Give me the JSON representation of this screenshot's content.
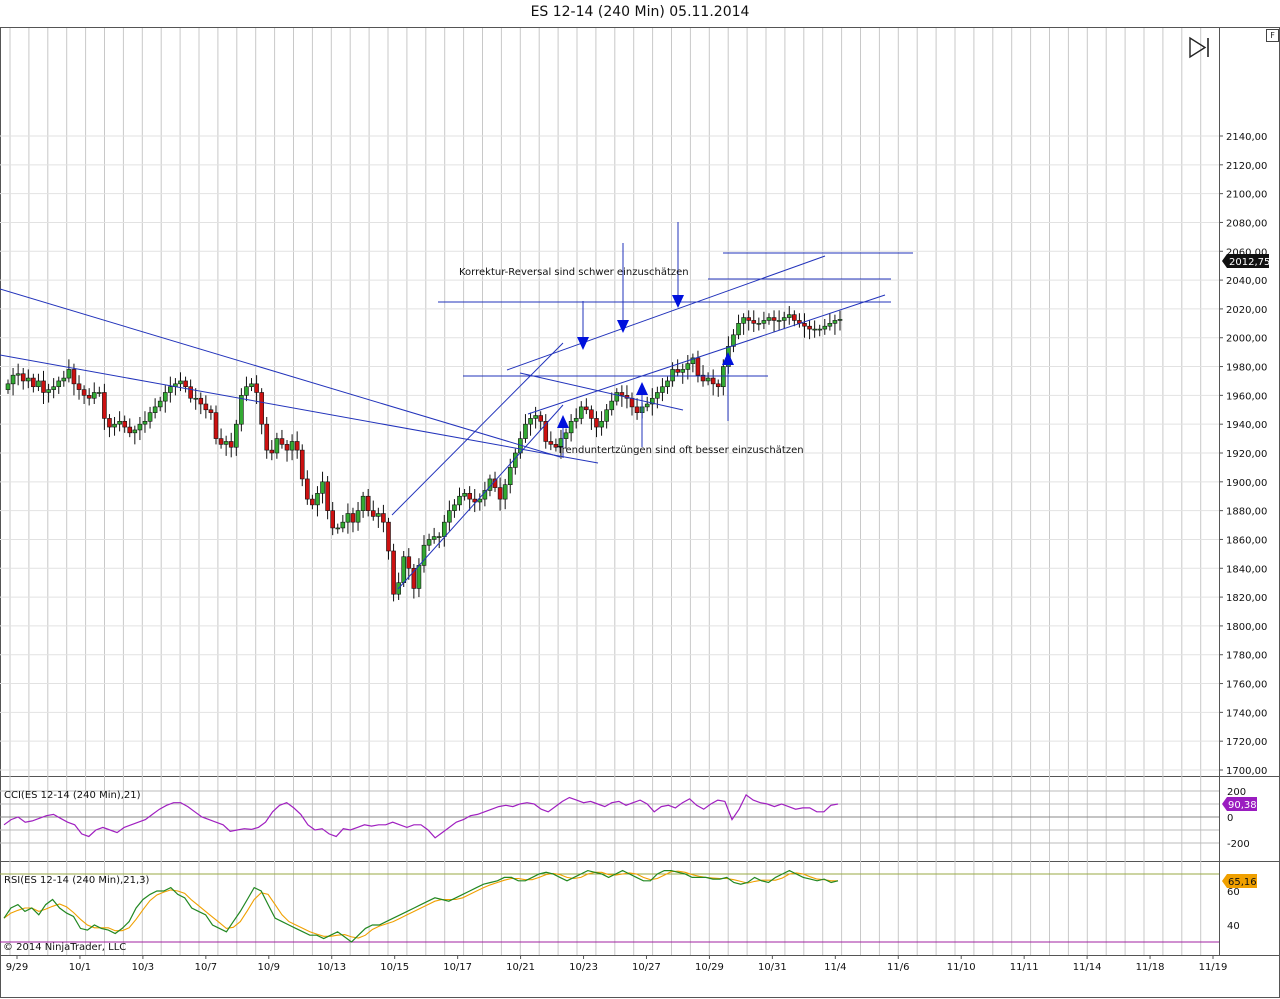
{
  "window_title": "ES 12-14 (240 Min)  05.11.2014",
  "f_button_label": "F",
  "copyright": "© 2014 NinjaTrader, LLC",
  "colors": {
    "up": "#33aa33",
    "down": "#cc1111",
    "trendline": "#2233bb",
    "cci": "#a020c0",
    "rsi": "#228822",
    "rsi_avg": "#f0a000",
    "grid": "#c8c8c8"
  },
  "chart_data": [
    {
      "type": "candlestick",
      "title": "ES 12-14 (240 Min)  05.11.2014",
      "ylim": [
        1695,
        2150
      ],
      "y_ticks": [
        "2140,00",
        "2120,00",
        "2100,00",
        "2080,00",
        "2060,00",
        "2040,00",
        "2020,00",
        "2000,00",
        "1980,00",
        "1960,00",
        "1940,00",
        "1920,00",
        "1900,00",
        "1880,00",
        "1860,00",
        "1840,00",
        "1820,00",
        "1800,00",
        "1780,00",
        "1760,00",
        "1740,00",
        "1720,00",
        "1700,00"
      ],
      "x_ticks": [
        "9/29",
        "10/1",
        "10/3",
        "10/7",
        "10/9",
        "10/13",
        "10/15",
        "10/17",
        "10/21",
        "10/23",
        "10/27",
        "10/29",
        "10/31",
        "11/4",
        "11/6",
        "11/10",
        "11/11",
        "11/14",
        "11/18",
        "11/19"
      ],
      "last_price_label": "2012,75",
      "last_price": 2012.75,
      "close_series": [
        1968,
        1974,
        1975,
        1970,
        1972,
        1966,
        1970,
        1962,
        1964,
        1966,
        1970,
        1972,
        1978,
        1968,
        1964,
        1960,
        1958,
        1962,
        1962,
        1944,
        1938,
        1940,
        1942,
        1938,
        1934,
        1936,
        1940,
        1942,
        1948,
        1952,
        1956,
        1962,
        1966,
        1968,
        1970,
        1966,
        1958,
        1958,
        1954,
        1950,
        1948,
        1930,
        1926,
        1928,
        1924,
        1940,
        1960,
        1966,
        1968,
        1962,
        1940,
        1922,
        1920,
        1930,
        1926,
        1922,
        1928,
        1922,
        1902,
        1888,
        1884,
        1892,
        1900,
        1880,
        1868,
        1868,
        1872,
        1878,
        1872,
        1880,
        1890,
        1880,
        1876,
        1878,
        1872,
        1852,
        1822,
        1830,
        1848,
        1840,
        1826,
        1842,
        1856,
        1860,
        1862,
        1862,
        1872,
        1880,
        1884,
        1890,
        1892,
        1888,
        1886,
        1888,
        1894,
        1902,
        1896,
        1888,
        1898,
        1910,
        1920,
        1930,
        1940,
        1944,
        1946,
        1942,
        1928,
        1926,
        1924,
        1930,
        1934,
        1942,
        1944,
        1952,
        1950,
        1944,
        1938,
        1942,
        1950,
        1956,
        1962,
        1960,
        1958,
        1952,
        1948,
        1952,
        1954,
        1958,
        1962,
        1966,
        1970,
        1978,
        1976,
        1978,
        1982,
        1986,
        1974,
        1970,
        1972,
        1968,
        1966,
        1980,
        1994,
        2002,
        2010,
        2014,
        2012,
        2010,
        2010,
        2012,
        2014,
        2012,
        2012,
        2014,
        2016,
        2012,
        2010,
        2008,
        2006,
        2006,
        2006,
        2008,
        2010,
        2012,
        2012.75
      ],
      "annotations": [
        "Korrektur-Reversal sind schwer einzuschätzen",
        "Trenduntertzüngen sind oft besser einzuschätzen"
      ]
    },
    {
      "type": "line",
      "name": "CCI(ES 12-14 (240 Min),21)",
      "ylim": [
        -270,
        260
      ],
      "y_ticks": [
        "200",
        "0",
        "-200"
      ],
      "last_value_label": "90,38",
      "last_value": 90.38,
      "values": [
        -60,
        -20,
        0,
        -40,
        -30,
        -10,
        10,
        20,
        -10,
        -40,
        -60,
        -130,
        -150,
        -100,
        -80,
        -100,
        -120,
        -80,
        -60,
        -40,
        -20,
        20,
        60,
        90,
        110,
        110,
        80,
        40,
        0,
        -20,
        -40,
        -60,
        -110,
        -100,
        -90,
        -95,
        -80,
        -40,
        40,
        90,
        110,
        70,
        20,
        -60,
        -100,
        -90,
        -130,
        -150,
        -90,
        -100,
        -80,
        -60,
        -70,
        -60,
        -60,
        -40,
        -60,
        -80,
        -60,
        -60,
        -100,
        -160,
        -120,
        -80,
        -40,
        -20,
        10,
        20,
        40,
        60,
        80,
        90,
        80,
        100,
        110,
        100,
        60,
        40,
        80,
        120,
        150,
        130,
        110,
        120,
        100,
        80,
        110,
        120,
        90,
        110,
        130,
        100,
        40,
        80,
        90,
        70,
        110,
        140,
        90,
        60,
        100,
        130,
        120,
        -20,
        60,
        170,
        130,
        110,
        100,
        80,
        100,
        80,
        60,
        70,
        70,
        40,
        40,
        90,
        100
      ]
    },
    {
      "type": "line",
      "name": "RSI(ES 12-14 (240 Min),21,3)",
      "ylim": [
        20,
        85
      ],
      "y_ticks": [
        "60",
        "40"
      ],
      "last_value_label": "65,16",
      "last_value": 65.16,
      "values": [
        44,
        50,
        52,
        48,
        50,
        46,
        52,
        55,
        50,
        47,
        45,
        38,
        37,
        40,
        38,
        37,
        35,
        38,
        42,
        50,
        55,
        58,
        60,
        60,
        62,
        58,
        56,
        50,
        48,
        46,
        40,
        38,
        36,
        42,
        48,
        55,
        62,
        60,
        52,
        44,
        42,
        40,
        38,
        36,
        34,
        34,
        32,
        34,
        36,
        33,
        30,
        34,
        38,
        40,
        40,
        42,
        44,
        46,
        48,
        50,
        52,
        54,
        56,
        55,
        54,
        56,
        58,
        60,
        62,
        64,
        65,
        66,
        68,
        68,
        66,
        66,
        68,
        70,
        71,
        70,
        68,
        66,
        68,
        70,
        72,
        71,
        70,
        68,
        70,
        72,
        70,
        68,
        66,
        66,
        70,
        72,
        72,
        71,
        70,
        68,
        68,
        68,
        67,
        67,
        68,
        65,
        64,
        65,
        68,
        66,
        65,
        68,
        70,
        72,
        70,
        68,
        67,
        66,
        67,
        65,
        66
      ]
    }
  ]
}
